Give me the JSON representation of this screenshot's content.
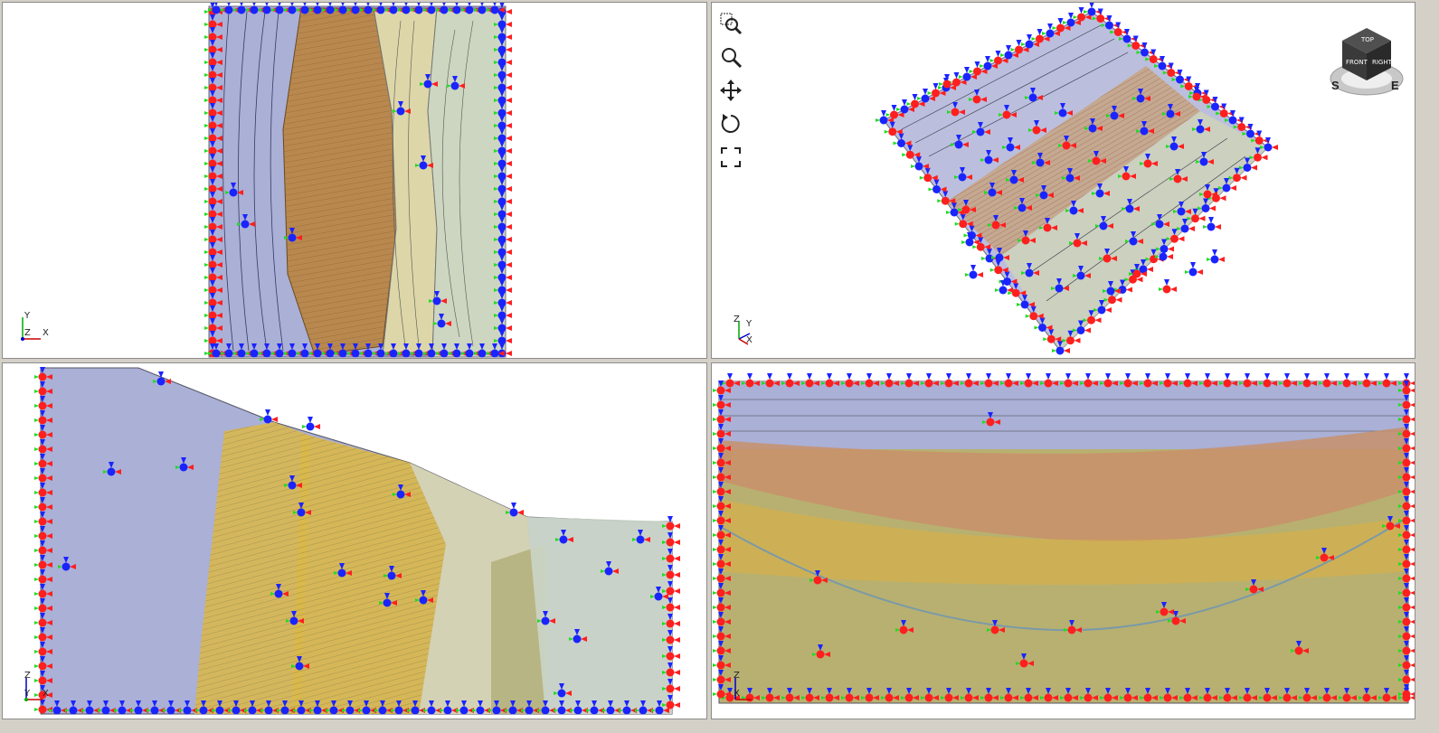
{
  "viewports": {
    "top_left": {
      "view": "plan",
      "axes": {
        "y": "Y",
        "z": "Z",
        "x": "X"
      }
    },
    "top_right": {
      "view": "isometric",
      "axes": {
        "z": "Z",
        "y": "Y",
        "x": "X"
      }
    },
    "bottom_left": {
      "view": "side",
      "axes": {
        "z": "Z",
        "y": "Y",
        "x": "X"
      }
    },
    "bottom_right": {
      "view": "front",
      "axes": {
        "z": "Z",
        "x": "X"
      }
    }
  },
  "toolbar": {
    "tools": [
      {
        "name": "zoom-window",
        "icon": "zoom-window-icon"
      },
      {
        "name": "zoom",
        "icon": "magnifier-icon"
      },
      {
        "name": "pan",
        "icon": "move-arrows-icon"
      },
      {
        "name": "rotate",
        "icon": "rotate-icon"
      },
      {
        "name": "zoom-extents",
        "icon": "fit-extents-icon"
      }
    ]
  },
  "navcube": {
    "faces": {
      "top": "TOP",
      "front": "FRONT",
      "right": "RIGHT"
    },
    "compass": {
      "south": "S",
      "east": "E"
    }
  },
  "colors": {
    "pane_bg": "#ffffff",
    "border": "#8c8c8c",
    "layer_blue": "#9ea4cf",
    "layer_brown": "#b88a55",
    "layer_yellow": "#d9b84a",
    "layer_olive": "#b8b070",
    "layer_cream": "#dcdcb8",
    "layer_green": "#c8d4bc",
    "bc_red": "#ff1f1f",
    "bc_green": "#22dd22",
    "bc_blue": "#1a24ff"
  }
}
